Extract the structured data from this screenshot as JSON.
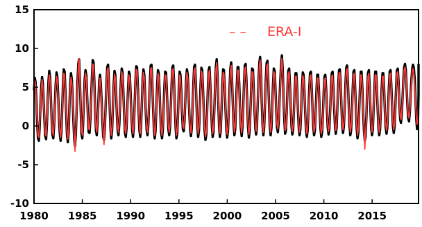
{
  "chart_data": {
    "type": "line",
    "xlim": [
      1980,
      2019.8
    ],
    "ylim": [
      -10,
      15
    ],
    "x_ticks": [
      "1980",
      "1985",
      "1990",
      "1995",
      "2000",
      "2005",
      "2010",
      "2015"
    ],
    "y_ticks": [
      "15",
      "10",
      "5",
      "0",
      "-5",
      "-10"
    ],
    "grid": false,
    "legend_position": "top-center",
    "series": [
      {
        "color": "#000000",
        "style": "solid",
        "approximate_monthly": true,
        "x_start": 1980.0,
        "x_step": 0.0833,
        "values": [
          4.6,
          6.2,
          5.6,
          3.0,
          0.2,
          -1.6,
          -1.9,
          -0.2,
          2.6,
          5.0,
          6.3,
          5.4,
          3.1,
          0.6,
          -1.3,
          -1.7,
          0.2,
          3.2,
          5.8,
          7.1,
          6.2,
          3.6,
          0.8,
          -1.2,
          -1.6,
          0.1,
          2.9,
          5.5,
          6.9,
          6.3,
          4.0,
          1.2,
          -0.9,
          -1.9,
          -0.8,
          2.2,
          5.2,
          7.3,
          7.0,
          4.6,
          1.5,
          -1.1,
          -2.1,
          -0.8,
          2.5,
          5.4,
          6.8,
          6.0,
          3.6,
          0.6,
          -1.8,
          -2.6,
          -1.0,
          2.2,
          5.6,
          8.0,
          8.6,
          5.8,
          2.2,
          -1.0,
          -1.6,
          0.2,
          3.4,
          6.0,
          7.2,
          6.5,
          4.0,
          1.2,
          -0.8,
          -0.9,
          0.8,
          3.6,
          6.4,
          8.5,
          8.2,
          5.6,
          2.0,
          -0.6,
          -1.2,
          0.4,
          3.2,
          5.7,
          6.6,
          5.5,
          3.2,
          0.5,
          -1.4,
          -1.8,
          -0.4,
          2.6,
          5.5,
          7.6,
          7.9,
          5.9,
          2.6,
          -0.3,
          -1.6,
          -0.6,
          2.3,
          5.3,
          7.1,
          6.6,
          4.2,
          1.4,
          -0.6,
          -1.2,
          0.2,
          3.0,
          5.8,
          7.4,
          6.9,
          4.4,
          1.4,
          -0.8,
          -1.4,
          -0.3,
          2.4,
          5.2,
          7.0,
          6.6,
          4.4,
          1.6,
          -0.6,
          -1.4,
          -0.2,
          2.6,
          5.6,
          7.7,
          7.6,
          5.2,
          2.0,
          -0.6,
          -1.4,
          0.0,
          3.0,
          5.9,
          7.3,
          6.6,
          4.2,
          1.5,
          -0.5,
          -1.2,
          0.0,
          2.8,
          5.7,
          7.8,
          7.9,
          5.6,
          2.2,
          -0.5,
          -1.6,
          -0.6,
          2.2,
          5.2,
          7.2,
          6.8,
          4.5,
          1.6,
          -0.8,
          -1.6,
          -0.6,
          2.0,
          5.0,
          7.0,
          6.9,
          4.8,
          1.8,
          -0.4,
          -1.2,
          -0.2,
          2.6,
          5.5,
          7.6,
          7.8,
          5.6,
          2.4,
          -0.3,
          -1.6,
          -0.9,
          1.8,
          4.9,
          7.0,
          6.6,
          4.4,
          1.6,
          -0.4,
          -0.7,
          0.6,
          3.2,
          5.8,
          7.3,
          6.6,
          4.4,
          1.6,
          -0.4,
          -1.3,
          -0.3,
          2.4,
          5.4,
          7.6,
          7.9,
          5.8,
          2.6,
          -0.2,
          -1.4,
          -0.6,
          2.2,
          5.3,
          7.5,
          7.2,
          4.8,
          1.8,
          -0.6,
          -1.8,
          -1.2,
          1.6,
          4.8,
          7.2,
          7.6,
          5.6,
          2.6,
          0.0,
          -1.4,
          -0.8,
          1.9,
          5.0,
          7.6,
          8.6,
          6.6,
          3.0,
          -0.1,
          -1.4,
          -0.6,
          2.2,
          5.2,
          7.3,
          7.2,
          5.0,
          2.0,
          -0.4,
          -1.5,
          -0.7,
          2.0,
          5.0,
          7.4,
          8.2,
          6.2,
          3.0,
          0.2,
          -1.2,
          -0.4,
          2.4,
          5.4,
          7.6,
          7.6,
          5.4,
          2.4,
          -0.3,
          -1.3,
          -0.2,
          2.6,
          5.6,
          7.8,
          8.0,
          5.8,
          2.6,
          -0.2,
          -1.5,
          -0.6,
          2.2,
          5.3,
          7.4,
          7.3,
          5.1,
          2.1,
          -0.3,
          -1.1,
          0.0,
          2.8,
          5.9,
          8.2,
          8.9,
          6.6,
          3.1,
          0.2,
          -1.2,
          -0.2,
          2.8,
          5.8,
          8.1,
          8.4,
          6.0,
          2.8,
          0.0,
          -1.2,
          -0.2,
          2.6,
          5.4,
          7.4,
          7.1,
          4.8,
          1.9,
          -0.2,
          -0.8,
          0.4,
          3.0,
          5.8,
          7.8,
          9.1,
          7.4,
          4.0,
          0.8,
          -1.0,
          -0.6,
          1.8,
          4.8,
          7.1,
          7.4,
          5.4,
          2.4,
          0.0,
          -1.1,
          -0.4,
          2.0,
          4.8,
          6.8,
          6.8,
          4.8,
          2.0,
          -0.3,
          -1.2,
          -0.4,
          2.2,
          5.0,
          6.9,
          6.6,
          4.4,
          1.6,
          -0.5,
          -1.4,
          -0.6,
          1.9,
          4.7,
          6.8,
          7.0,
          5.2,
          2.4,
          0.0,
          -1.2,
          -0.6,
          1.8,
          4.6,
          6.6,
          6.6,
          4.6,
          1.8,
          -0.4,
          -1.4,
          -0.8,
          1.6,
          4.4,
          6.4,
          6.6,
          4.8,
          2.0,
          -0.2,
          -1.1,
          -0.4,
          2.0,
          4.8,
          6.8,
          7.0,
          5.0,
          2.2,
          -0.1,
          -1.0,
          -0.2,
          2.4,
          5.2,
          7.2,
          7.3,
          5.4,
          2.6,
          0.2,
          -0.9,
          -0.1,
          2.4,
          5.3,
          7.5,
          7.8,
          5.8,
          2.8,
          0.2,
          -1.2,
          -0.6,
          1.8,
          4.8,
          7.0,
          7.2,
          5.2,
          2.2,
          -0.4,
          -1.6,
          -0.8,
          1.8,
          4.8,
          7.0,
          7.0,
          4.8,
          1.8,
          -0.6,
          -1.9,
          -1.4,
          1.2,
          4.4,
          6.8,
          7.2,
          5.2,
          2.2,
          -0.3,
          -1.2,
          -0.4,
          2.2,
          5.0,
          7.0,
          7.0,
          5.0,
          2.2,
          -0.2,
          -1.2,
          -0.4,
          2.0,
          4.8,
          6.8,
          6.8,
          4.8,
          2.0,
          -0.2,
          -1.0,
          -0.2,
          2.2,
          5.0,
          7.0,
          7.2,
          5.2,
          2.4,
          0.0,
          -0.9,
          -0.1,
          2.4,
          5.2,
          7.2,
          7.4,
          5.6,
          3.0,
          0.8,
          0.4,
          1.6,
          3.8,
          6.0,
          7.6,
          8.0,
          7.2,
          5.0,
          2.6,
          1.0,
          0.6,
          1.8,
          4.0,
          6.0,
          7.4,
          7.9,
          7.4,
          6.2,
          3.6,
          0.8,
          -0.4,
          0.2,
          4.0,
          7.6,
          8.0
        ]
      },
      {
        "name": "ERA-I",
        "color": "#ff3b3b",
        "style": "dashed",
        "approximate_monthly": true,
        "x_start": 1980.0,
        "x_step": 0.0833,
        "values": [
          4.2,
          5.8,
          5.4,
          2.6,
          0.6,
          -1.2,
          -1.5,
          0.2,
          2.4,
          4.6,
          6.0,
          5.0,
          2.8,
          0.9,
          -0.9,
          -1.3,
          0.6,
          3.0,
          5.4,
          6.6,
          5.8,
          3.4,
          1.0,
          -0.8,
          -1.2,
          0.4,
          2.7,
          5.1,
          6.4,
          5.9,
          3.8,
          1.4,
          -0.5,
          -1.5,
          -0.4,
          2.0,
          4.8,
          6.8,
          6.6,
          4.4,
          1.7,
          -0.7,
          -1.7,
          -0.4,
          2.3,
          5.0,
          6.3,
          5.6,
          3.4,
          0.9,
          -1.4,
          -3.3,
          -0.6,
          2.0,
          5.2,
          7.6,
          8.7,
          5.6,
          2.4,
          -0.6,
          -1.2,
          0.6,
          3.2,
          5.6,
          6.8,
          6.1,
          3.8,
          1.4,
          -0.4,
          -0.5,
          1.2,
          3.4,
          6.0,
          8.0,
          7.8,
          5.4,
          2.2,
          -0.2,
          -0.8,
          0.8,
          3.0,
          5.3,
          6.2,
          5.1,
          3.0,
          0.8,
          -1.0,
          -2.4,
          0.0,
          2.4,
          5.1,
          7.2,
          7.5,
          5.7,
          2.8,
          0.1,
          -1.2,
          -0.2,
          2.1,
          4.9,
          6.7,
          6.2,
          4.0,
          1.6,
          -0.2,
          -0.8,
          0.6,
          2.8,
          5.4,
          7.0,
          6.5,
          4.2,
          1.6,
          -0.4,
          -1.0,
          0.1,
          2.2,
          4.8,
          6.6,
          6.2,
          4.2,
          1.8,
          -0.2,
          -1.0,
          0.2,
          2.4,
          5.2,
          7.3,
          7.2,
          5.0,
          2.2,
          -0.2,
          -1.0,
          0.4,
          2.8,
          5.5,
          6.9,
          6.2,
          4.0,
          1.7,
          -0.1,
          -0.8,
          0.4,
          2.6,
          5.3,
          7.4,
          7.5,
          5.4,
          2.4,
          -0.1,
          -1.2,
          -0.2,
          2.0,
          4.8,
          6.8,
          6.4,
          4.3,
          1.8,
          -0.4,
          -1.2,
          -0.2,
          1.8,
          4.6,
          6.6,
          6.5,
          4.6,
          2.0,
          0.0,
          -0.8,
          0.2,
          2.4,
          5.1,
          7.2,
          7.4,
          5.4,
          2.6,
          0.1,
          -1.2,
          -0.5,
          1.6,
          4.5,
          6.6,
          6.2,
          4.2,
          1.8,
          0.0,
          -0.3,
          1.0,
          3.0,
          5.4,
          6.9,
          6.2,
          4.2,
          1.8,
          0.0,
          -0.9,
          0.1,
          2.2,
          5.0,
          7.2,
          7.5,
          5.6,
          2.8,
          0.2,
          -1.0,
          -0.2,
          2.0,
          4.9,
          7.1,
          6.8,
          4.6,
          2.0,
          -0.2,
          -1.4,
          -0.8,
          1.4,
          4.4,
          6.8,
          7.2,
          5.4,
          2.8,
          0.4,
          -1.0,
          -0.4,
          1.7,
          4.6,
          7.2,
          8.2,
          6.4,
          3.2,
          0.3,
          -1.0,
          -0.2,
          2.0,
          4.8,
          6.9,
          6.8,
          4.8,
          2.2,
          0.0,
          -1.1,
          -0.3,
          1.8,
          4.6,
          7.0,
          7.8,
          6.0,
          3.2,
          0.6,
          -0.8,
          0.0,
          2.2,
          5.0,
          7.2,
          7.2,
          5.2,
          2.6,
          0.1,
          -0.9,
          0.2,
          2.4,
          5.2,
          7.4,
          7.6,
          5.6,
          2.8,
          0.2,
          -1.1,
          -0.2,
          2.0,
          4.9,
          7.0,
          6.9,
          4.9,
          2.3,
          0.1,
          -0.7,
          0.4,
          2.6,
          5.5,
          7.8,
          8.5,
          6.4,
          3.3,
          0.6,
          -0.8,
          0.2,
          2.6,
          5.4,
          7.7,
          8.0,
          5.8,
          3.0,
          0.4,
          -0.8,
          0.2,
          2.4,
          5.0,
          7.0,
          6.7,
          4.6,
          2.1,
          0.2,
          -0.4,
          0.8,
          2.8,
          5.4,
          7.4,
          8.7,
          7.2,
          4.2,
          1.2,
          -0.6,
          -0.2,
          1.6,
          4.4,
          6.7,
          7.0,
          5.2,
          2.6,
          0.4,
          -0.7,
          0.0,
          1.8,
          4.4,
          6.4,
          6.4,
          4.6,
          2.2,
          0.1,
          -0.8,
          0.0,
          2.0,
          4.6,
          6.5,
          6.2,
          4.2,
          1.8,
          -0.1,
          -1.0,
          -0.2,
          1.7,
          4.3,
          6.4,
          6.6,
          5.0,
          2.6,
          0.4,
          -0.8,
          -0.2,
          1.6,
          4.2,
          6.2,
          6.2,
          4.4,
          2.0,
          0.0,
          -1.0,
          -0.4,
          1.4,
          4.0,
          6.0,
          6.2,
          4.6,
          2.2,
          0.2,
          -0.7,
          0.0,
          1.8,
          4.4,
          6.4,
          6.6,
          4.8,
          2.4,
          0.3,
          -0.6,
          0.2,
          2.2,
          4.8,
          6.8,
          6.9,
          5.2,
          2.8,
          0.6,
          -0.5,
          0.3,
          2.2,
          4.9,
          7.1,
          7.4,
          5.6,
          3.0,
          0.6,
          -0.8,
          -0.2,
          1.6,
          4.4,
          6.6,
          6.8,
          5.0,
          2.4,
          0.0,
          -1.2,
          -0.4,
          1.6,
          4.4,
          6.6,
          6.6,
          4.6,
          2.0,
          -0.2,
          -3.0,
          -1.0,
          1.0,
          4.0,
          6.4,
          6.8,
          5.0,
          2.4,
          0.1,
          -0.8,
          0.0,
          2.0,
          4.6,
          6.6,
          6.6,
          4.8,
          2.4,
          0.2,
          -0.8,
          0.0,
          1.8,
          4.4,
          6.4,
          6.4,
          4.6,
          2.2,
          0.2,
          -0.6,
          0.2,
          2.0,
          4.6,
          6.6,
          6.8,
          5.0,
          2.6,
          0.4,
          -0.5,
          0.3,
          2.2,
          4.8,
          6.8,
          7.0,
          5.4,
          3.2,
          1.2,
          0.8,
          2.0,
          3.6,
          5.6,
          7.2,
          7.6,
          6.8,
          5.0,
          3.0,
          1.4,
          1.0,
          2.0,
          3.8,
          5.6,
          7.0,
          7.4,
          6.8,
          5.4,
          3.2,
          1.2,
          0.2,
          0.8,
          3.6,
          6.4,
          6.0
        ]
      }
    ]
  },
  "legend": {
    "label": "ERA-I",
    "marker": "– –"
  }
}
